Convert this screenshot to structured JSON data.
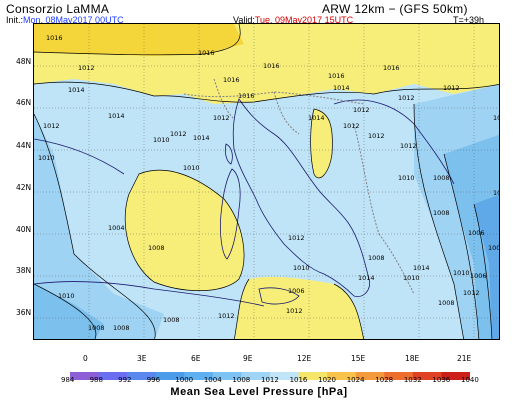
{
  "header": {
    "org": "Consorzio LaMMA",
    "init_label": "Init.:",
    "init_value": "Mon, 08May2017 00UTC",
    "model": "ARW 12km  − (GFS 50km)",
    "valid_label": "Valid:",
    "valid_value": "Tue, 09May2017 15UTC",
    "lead": "T=+39h"
  },
  "map": {
    "lat_labels": [
      "48N",
      "46N",
      "44N",
      "42N",
      "40N",
      "38N",
      "36N"
    ],
    "lon_labels": [
      "0",
      "3E",
      "6E",
      "9E",
      "12E",
      "15E",
      "18E",
      "21E"
    ],
    "isobar_labels": [
      "1016",
      "1016",
      "1016",
      "1016",
      "1016",
      "1014",
      "1014",
      "1014",
      "1012",
      "1012",
      "1012",
      "1012",
      "1012",
      "1010",
      "1010",
      "1010",
      "1010",
      "1008",
      "1008",
      "1008",
      "1006",
      "1006",
      "1004",
      "1004",
      "1012",
      "1012",
      "1010",
      "1008",
      "1012",
      "1012",
      "1014",
      "1014",
      "1012",
      "1010",
      "1008",
      "1008",
      "1010",
      "1012",
      "1016",
      "1016",
      "1014",
      "1014",
      "1012",
      "1012",
      "1010",
      "1008",
      "1006",
      "1004",
      "1012",
      "1010",
      "1008"
    ]
  },
  "colorbar": {
    "ticks": [
      "984",
      "988",
      "992",
      "996",
      "1000",
      "1004",
      "1008",
      "1012",
      "1016",
      "1020",
      "1024",
      "1028",
      "1032",
      "1036",
      "1040"
    ],
    "colors": [
      "#8c5fd6",
      "#6b6ef0",
      "#5a86ee",
      "#4d9cec",
      "#5fb0f0",
      "#7cc3f3",
      "#9fd4f5",
      "#c0e4f8",
      "#f5e66a",
      "#f7c34a",
      "#f59a3a",
      "#ee6e2e",
      "#e04324",
      "#cc1f1a"
    ],
    "title": "Mean Sea Level Pressure [hPa]"
  },
  "palette": {
    "yellow": "#f7ee7a",
    "yellow_dark": "#f5d63a",
    "blue_light": "#bfe3f7",
    "blue_mid": "#9fd3f4",
    "blue_dark": "#7cc0ee",
    "blue_deep": "#5fa9e8"
  }
}
